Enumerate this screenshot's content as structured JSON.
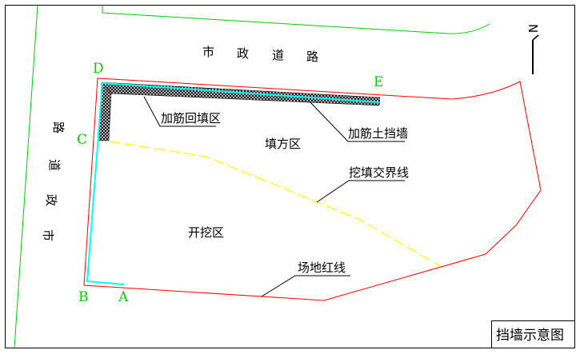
{
  "drawing": {
    "title": "挡墙示意图",
    "roads": {
      "top_road": [
        "市",
        "政",
        "道",
        "路"
      ],
      "left_road": [
        "市",
        "政",
        "道",
        "路"
      ]
    },
    "points": {
      "A": "A",
      "B": "B",
      "C": "C",
      "D": "D",
      "E": "E"
    },
    "zones": {
      "fill_zone": "填方区",
      "cut_zone": "开挖区"
    },
    "callouts": {
      "reinforced_backfill": "加筋回填区",
      "reinforced_wall": "加筋土挡墙",
      "cut_fill_boundary": "挖填交界线",
      "site_red_line": "场地红线"
    },
    "north_arrow_label": "N",
    "colors": {
      "frame": "#000000",
      "road_edge": "#00cc00",
      "site_red_line": "#ff0000",
      "wall_edge": "#00ffff",
      "boundary_line": "#ffff00",
      "point_labels": "#00cc00"
    }
  }
}
